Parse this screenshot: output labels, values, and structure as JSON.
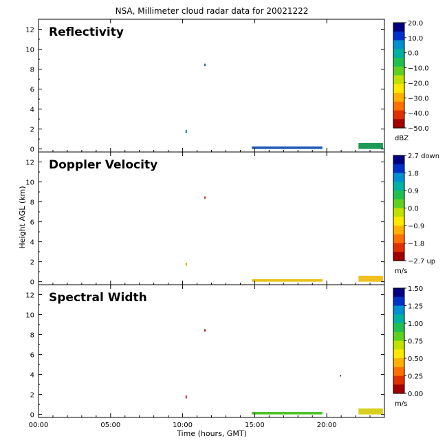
{
  "chart_data": {
    "type": "heatmap",
    "title": "NSA, Millimeter cloud radar data for 20021222",
    "xlabel": "Time (hours, GMT)",
    "ylabel": "Height AGL (km)",
    "xlim": [
      0,
      24
    ],
    "ylim": [
      -0.3,
      13
    ],
    "x_ticks": [
      "00:00",
      "05:00",
      "10:00",
      "15:00",
      "20:00"
    ],
    "x_tick_values": [
      0,
      5,
      10,
      15,
      20
    ],
    "y_ticks": [
      "0",
      "2",
      "4",
      "6",
      "8",
      "10",
      "12"
    ],
    "y_tick_values": [
      0,
      2,
      4,
      6,
      8,
      10,
      12
    ],
    "panels": [
      {
        "title": "Reflectivity",
        "unit": "dBZ",
        "colorbar_ticks": [
          "20.0",
          "10.0",
          "0.0",
          "−10.0",
          "−20.0",
          "−30.0",
          "−40.0",
          "−50.0"
        ],
        "colorbar_range": [
          -50,
          20
        ],
        "echoes": [
          {
            "t0": 14.8,
            "t1": 19.7,
            "h0": 0.0,
            "h1": 0.25,
            "color": "#1a5ab4"
          },
          {
            "t0": 22.2,
            "t1": 23.9,
            "h0": 0.0,
            "h1": 0.6,
            "color": "#1f9a55"
          },
          {
            "t0": 10.2,
            "t1": 10.3,
            "h0": 1.6,
            "h1": 1.9,
            "color": "#2277bb"
          },
          {
            "t0": 11.5,
            "t1": 11.6,
            "h0": 8.3,
            "h1": 8.55,
            "color": "#1f7a8a"
          }
        ]
      },
      {
        "title": "Doppler Velocity",
        "unit": "m/s",
        "colorbar_ticks": [
          "2.7 down",
          "1.8",
          "0.9",
          "0.0",
          "−0.9",
          "−1.8",
          "−2.7 up"
        ],
        "colorbar_range": [
          -2.7,
          2.7
        ],
        "echoes": [
          {
            "t0": 14.8,
            "t1": 19.7,
            "h0": 0.0,
            "h1": 0.25,
            "color": "#e6c21c"
          },
          {
            "t0": 22.2,
            "t1": 23.9,
            "h0": 0.0,
            "h1": 0.6,
            "color": "#f0c020"
          },
          {
            "t0": 10.2,
            "t1": 10.3,
            "h0": 1.6,
            "h1": 1.9,
            "color": "#e6a020"
          },
          {
            "t0": 11.5,
            "t1": 11.6,
            "h0": 8.3,
            "h1": 8.55,
            "color": "#cc4422"
          }
        ]
      },
      {
        "title": "Spectral Width",
        "unit": "m/s",
        "colorbar_ticks": [
          "1.50",
          "1.25",
          "1.00",
          "0.75",
          "0.50",
          "0.25",
          "0.00"
        ],
        "colorbar_range": [
          0,
          1.5
        ],
        "echoes": [
          {
            "t0": 14.8,
            "t1": 19.7,
            "h0": 0.0,
            "h1": 0.25,
            "color": "#4fc22a"
          },
          {
            "t0": 22.2,
            "t1": 23.9,
            "h0": 0.0,
            "h1": 0.6,
            "color": "#d8d020"
          },
          {
            "t0": 10.2,
            "t1": 10.3,
            "h0": 1.6,
            "h1": 1.9,
            "color": "#cc3333"
          },
          {
            "t0": 11.5,
            "t1": 11.6,
            "h0": 8.3,
            "h1": 8.55,
            "color": "#aa2222"
          },
          {
            "t0": 20.9,
            "t1": 21.0,
            "h0": 3.8,
            "h1": 3.95,
            "color": "#774422"
          }
        ]
      }
    ],
    "colormap": [
      "#000080",
      "#0030c8",
      "#0090d0",
      "#00b0a0",
      "#20c050",
      "#60d020",
      "#c0e000",
      "#ffe800",
      "#ffb000",
      "#ff7000",
      "#e03000",
      "#a00000"
    ]
  }
}
